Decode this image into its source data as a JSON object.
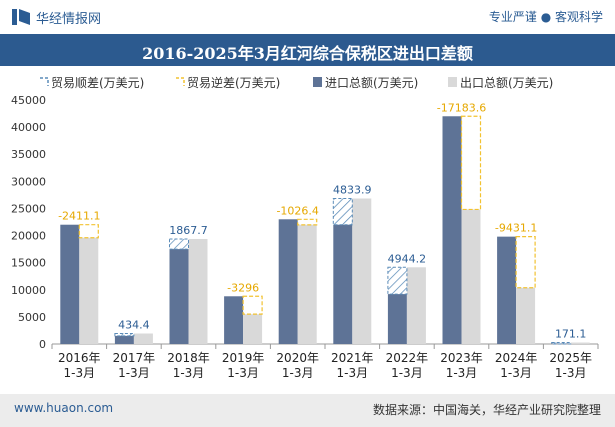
{
  "header": {
    "brand": "华经情报网",
    "slogan": "专业严谨 ● 客观科学",
    "title": "2016-2025年3月红河综合保税区进出口差额"
  },
  "footer": {
    "site": "www.huaon.com",
    "source": "数据来源：中国海关，华经产业研究院整理"
  },
  "colors": {
    "title_bar": "#2c5a8f",
    "import": "#5e7396",
    "export": "#d9d9d9",
    "surplus": "#5a8bb8",
    "deficit": "#f2c230",
    "label_surplus": "#2b5c93",
    "label_deficit": "#e6a800"
  },
  "chart_data": {
    "type": "bar",
    "title": "2016-2025年3月红河综合保税区进出口差额",
    "ylim": [
      0,
      45000
    ],
    "yticks": [
      0,
      5000,
      10000,
      15000,
      20000,
      25000,
      30000,
      35000,
      40000,
      45000
    ],
    "categories": [
      "2016年\n1-3月",
      "2017年\n1-3月",
      "2018年\n1-3月",
      "2019年\n1-3月",
      "2020年\n1-3月",
      "2021年\n1-3月",
      "2022年\n1-3月",
      "2023年\n1-3月",
      "2024年\n1-3月",
      "2025年\n1-3月"
    ],
    "legend": [
      "贸易顺差(万美元)",
      "贸易逆差(万美元)",
      "进口总额(万美元)",
      "出口总额(万美元)"
    ],
    "series": [
      {
        "name": "进口总额(万美元)",
        "values": [
          22000,
          1500,
          17500,
          8800,
          23000,
          22000,
          9200,
          42000,
          19800,
          100
        ]
      },
      {
        "name": "出口总额(万美元)",
        "values": [
          19600,
          1934,
          19368,
          5500,
          22000,
          26834,
          14144,
          24816,
          10369,
          271
        ]
      }
    ],
    "balance": [
      -2411.1,
      434.4,
      1867.7,
      -3296,
      -1026.4,
      4833.9,
      4944.2,
      -17183.6,
      -9431.1,
      171.1
    ],
    "balance_labels": [
      "-2411.1",
      "434.4",
      "1867.7",
      "-3296",
      "-1026.4",
      "4833.9",
      "4944.2",
      "-17183.6",
      "-9431.1",
      "171.1"
    ]
  }
}
